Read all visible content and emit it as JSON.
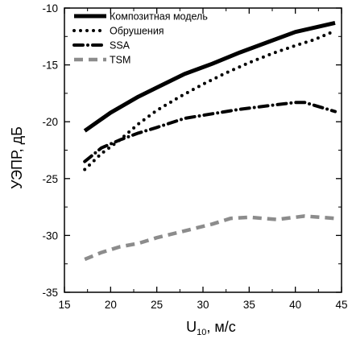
{
  "chart_data": {
    "type": "line",
    "xlabel": "U",
    "xlabel_sub": "10",
    "xlabel_unit": ", м/с",
    "ylabel": "УЭПР, дБ",
    "xlim": [
      15,
      45
    ],
    "ylim": [
      -35,
      -10
    ],
    "x_ticks": [
      15,
      20,
      25,
      30,
      35,
      40,
      45
    ],
    "y_ticks": [
      -10,
      -15,
      -20,
      -25,
      -30,
      -35
    ],
    "grid": false,
    "legend_position": "top-left",
    "series": [
      {
        "name": "Композитная модель",
        "style": "solid",
        "color": "#000000",
        "x": [
          17.2,
          20,
          23,
          25,
          28,
          31,
          34,
          37,
          40,
          44.3
        ],
        "y": [
          -20.8,
          -19.2,
          -17.8,
          -17.0,
          -15.8,
          -14.9,
          -13.9,
          -13.0,
          -12.1,
          -11.3
        ]
      },
      {
        "name": "Обрушения",
        "style": "dotted",
        "color": "#000000",
        "x": [
          17.2,
          19,
          21,
          23,
          25,
          27.5,
          30,
          32.5,
          35,
          37.5,
          40,
          42,
          44.3
        ],
        "y": [
          -24.2,
          -22.8,
          -21.6,
          -20.2,
          -19.0,
          -17.8,
          -16.7,
          -15.7,
          -14.8,
          -14.0,
          -13.3,
          -12.8,
          -12.0
        ]
      },
      {
        "name": "SSA",
        "style": "dash-dot",
        "color": "#000000",
        "x": [
          17.2,
          19,
          21,
          23,
          25,
          28,
          31,
          34,
          37,
          40,
          41,
          44.3
        ],
        "y": [
          -23.5,
          -22.3,
          -21.6,
          -21.0,
          -20.5,
          -19.7,
          -19.3,
          -18.9,
          -18.6,
          -18.3,
          -18.3,
          -19.1
        ]
      },
      {
        "name": "TSM",
        "style": "dashed",
        "color": "#8c8c8c",
        "x": [
          17.2,
          19,
          21,
          23,
          25,
          28,
          31,
          33,
          35,
          38,
          41,
          44.3
        ],
        "y": [
          -32.1,
          -31.5,
          -31.0,
          -30.7,
          -30.2,
          -29.6,
          -29.0,
          -28.5,
          -28.4,
          -28.6,
          -28.3,
          -28.5
        ]
      }
    ]
  }
}
